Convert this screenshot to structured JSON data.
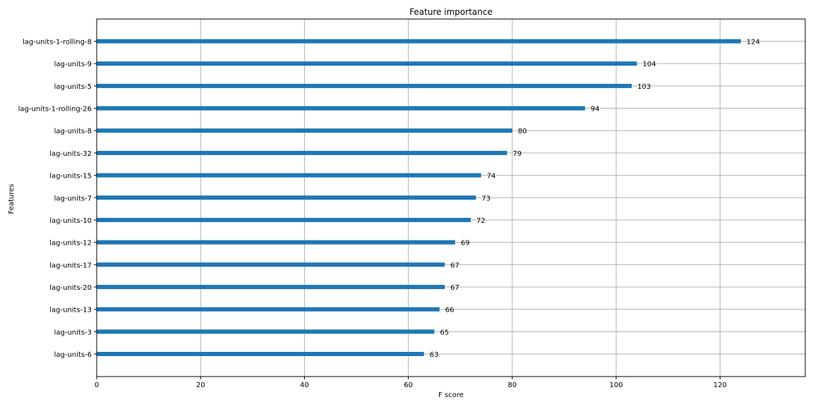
{
  "chart_data": {
    "type": "bar",
    "orientation": "horizontal",
    "title": "Feature importance",
    "xlabel": "F score",
    "ylabel": "Features",
    "categories": [
      "lag-units-1-rolling-8",
      "lag-units-9",
      "lag-units-5",
      "lag-units-1-rolling-26",
      "lag-units-8",
      "lag-units-32",
      "lag-units-15",
      "lag-units-7",
      "lag-units-10",
      "lag-units-12",
      "lag-units-17",
      "lag-units-20",
      "lag-units-13",
      "lag-units-3",
      "lag-units-6"
    ],
    "values": [
      124,
      104,
      103,
      94,
      80,
      79,
      74,
      73,
      72,
      69,
      67,
      67,
      66,
      65,
      63
    ],
    "xlim": [
      0,
      136.4
    ],
    "xticks": [
      0,
      20,
      40,
      60,
      80,
      100,
      120
    ],
    "grid": true,
    "bar_color": "#1f77b4",
    "grid_color": "#b0b0b0"
  }
}
